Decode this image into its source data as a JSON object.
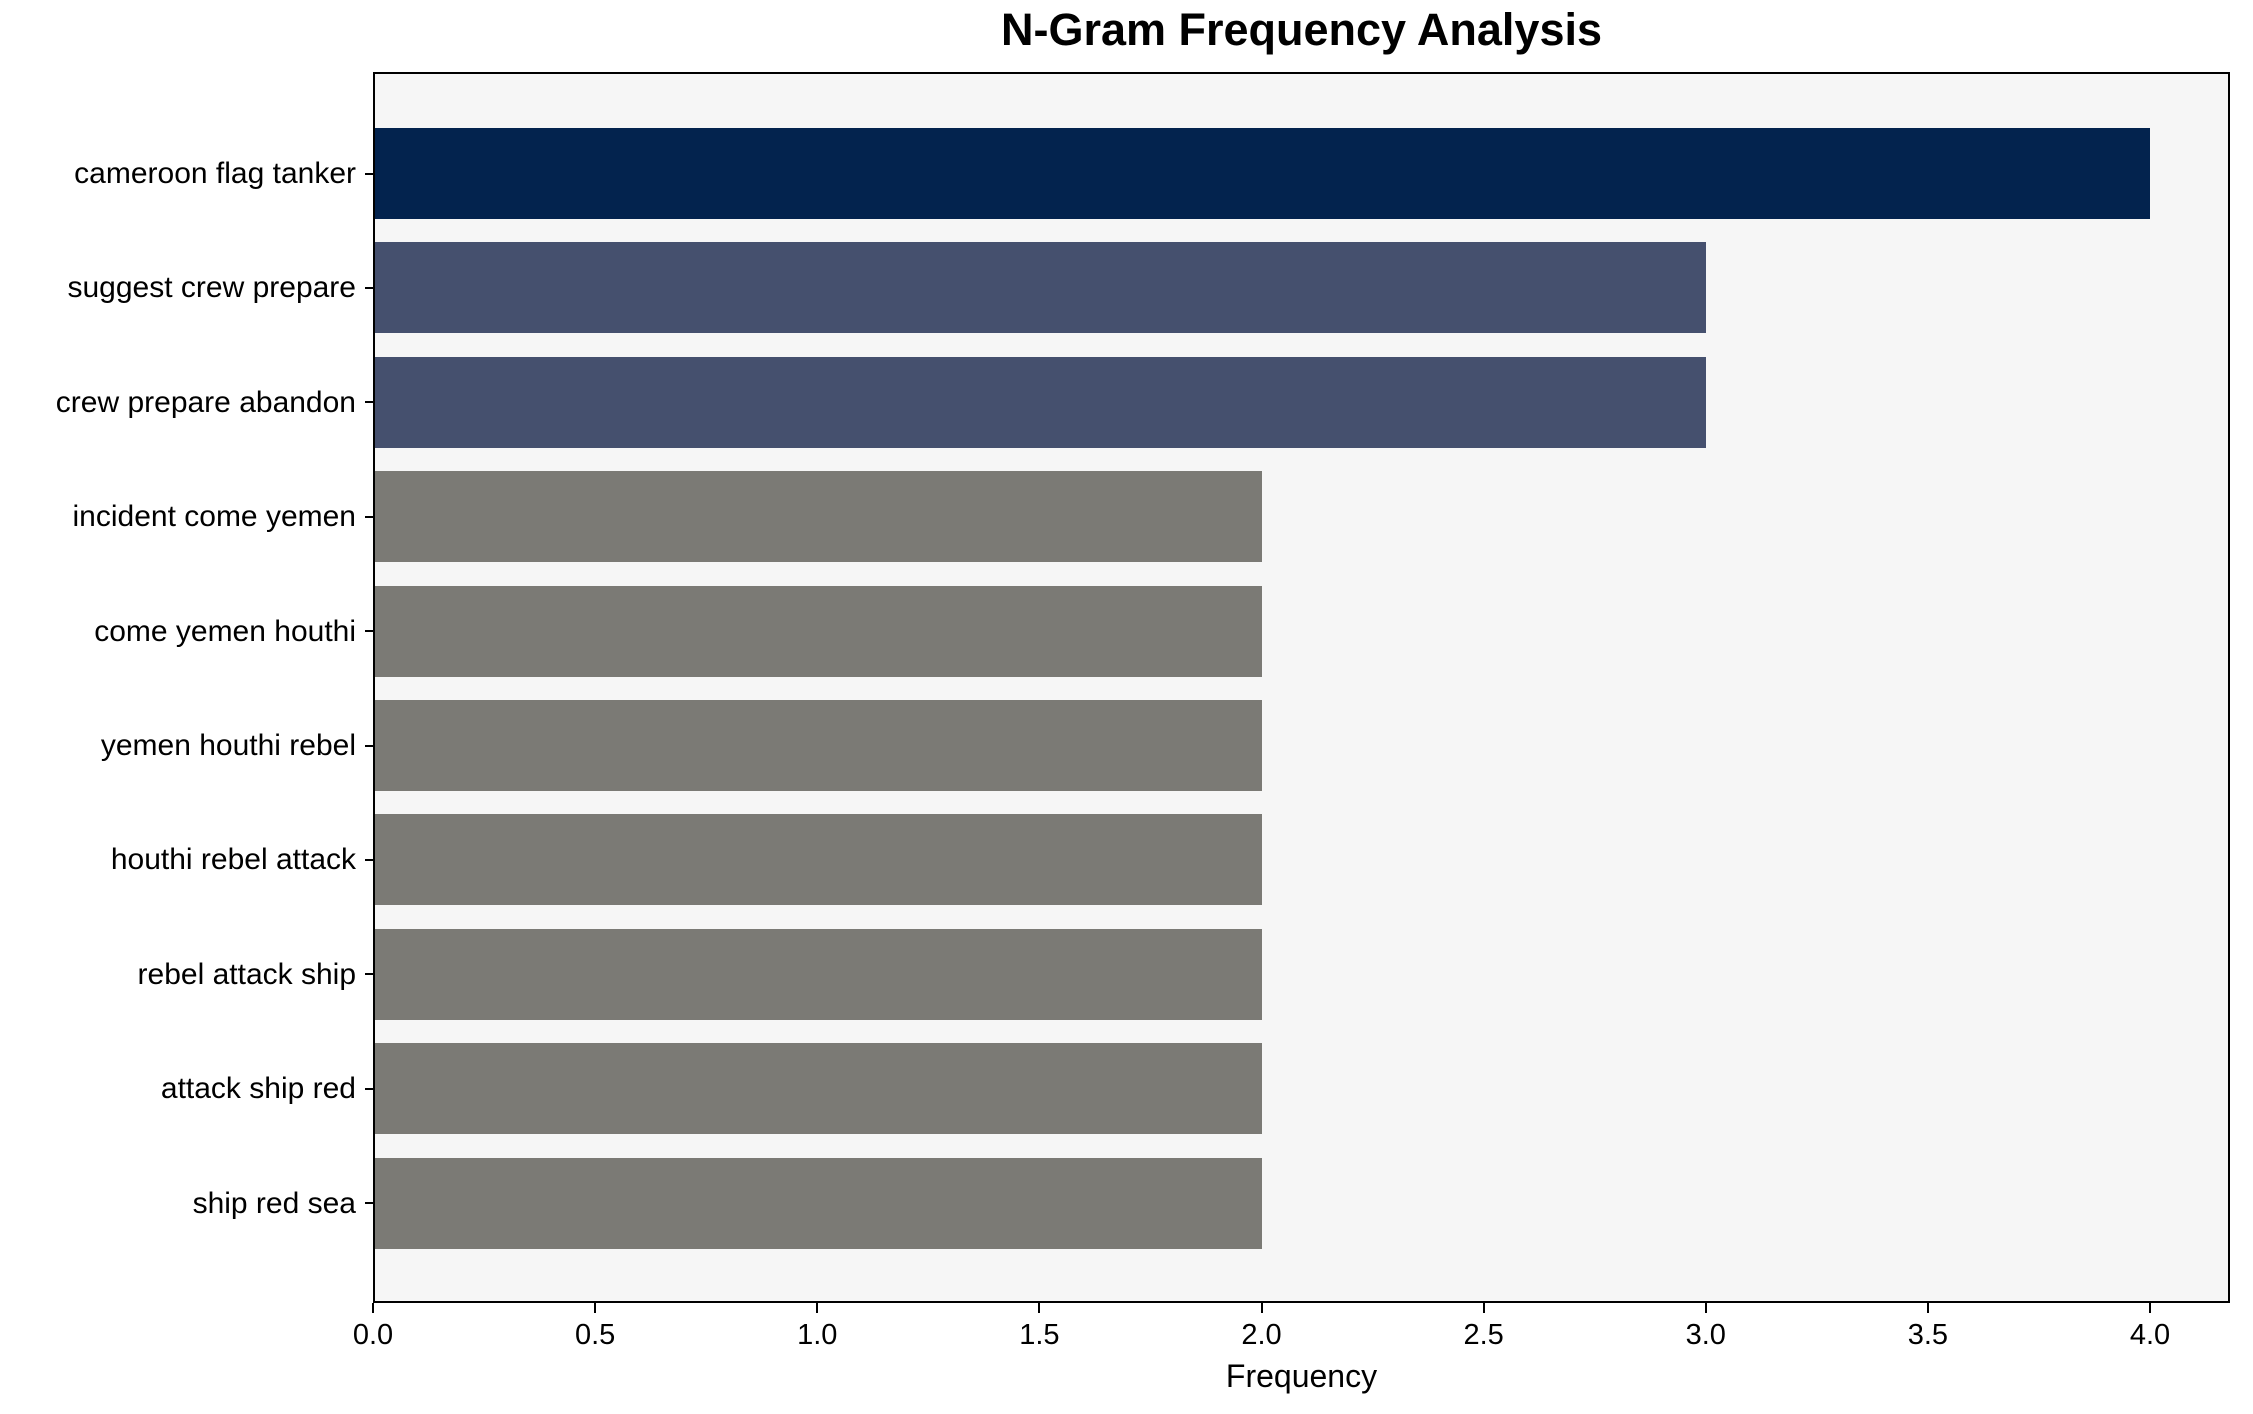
{
  "chart_data": {
    "type": "bar",
    "orientation": "horizontal",
    "title": "N-Gram Frequency Analysis",
    "xlabel": "Frequency",
    "ylabel": "",
    "categories": [
      "cameroon flag tanker",
      "suggest crew prepare",
      "crew prepare abandon",
      "incident come yemen",
      "come yemen houthi",
      "yemen houthi rebel",
      "houthi rebel attack",
      "rebel attack ship",
      "attack ship red",
      "ship red sea"
    ],
    "values": [
      4,
      3,
      3,
      2,
      2,
      2,
      2,
      2,
      2,
      2
    ],
    "bar_colors": [
      "#03234e",
      "#45506e",
      "#45506e",
      "#7b7a75",
      "#7b7a75",
      "#7b7a75",
      "#7b7a75",
      "#7b7a75",
      "#7b7a75",
      "#7b7a75"
    ],
    "x_ticks": [
      "0.0",
      "0.5",
      "1.0",
      "1.5",
      "2.0",
      "2.5",
      "3.0",
      "3.5",
      "4.0"
    ],
    "xlim": [
      0,
      4.18
    ],
    "grid": false,
    "legend": null,
    "plot_background": "#f6f6f6",
    "figure_background": "#ffffff",
    "spine_color": "#000000"
  }
}
